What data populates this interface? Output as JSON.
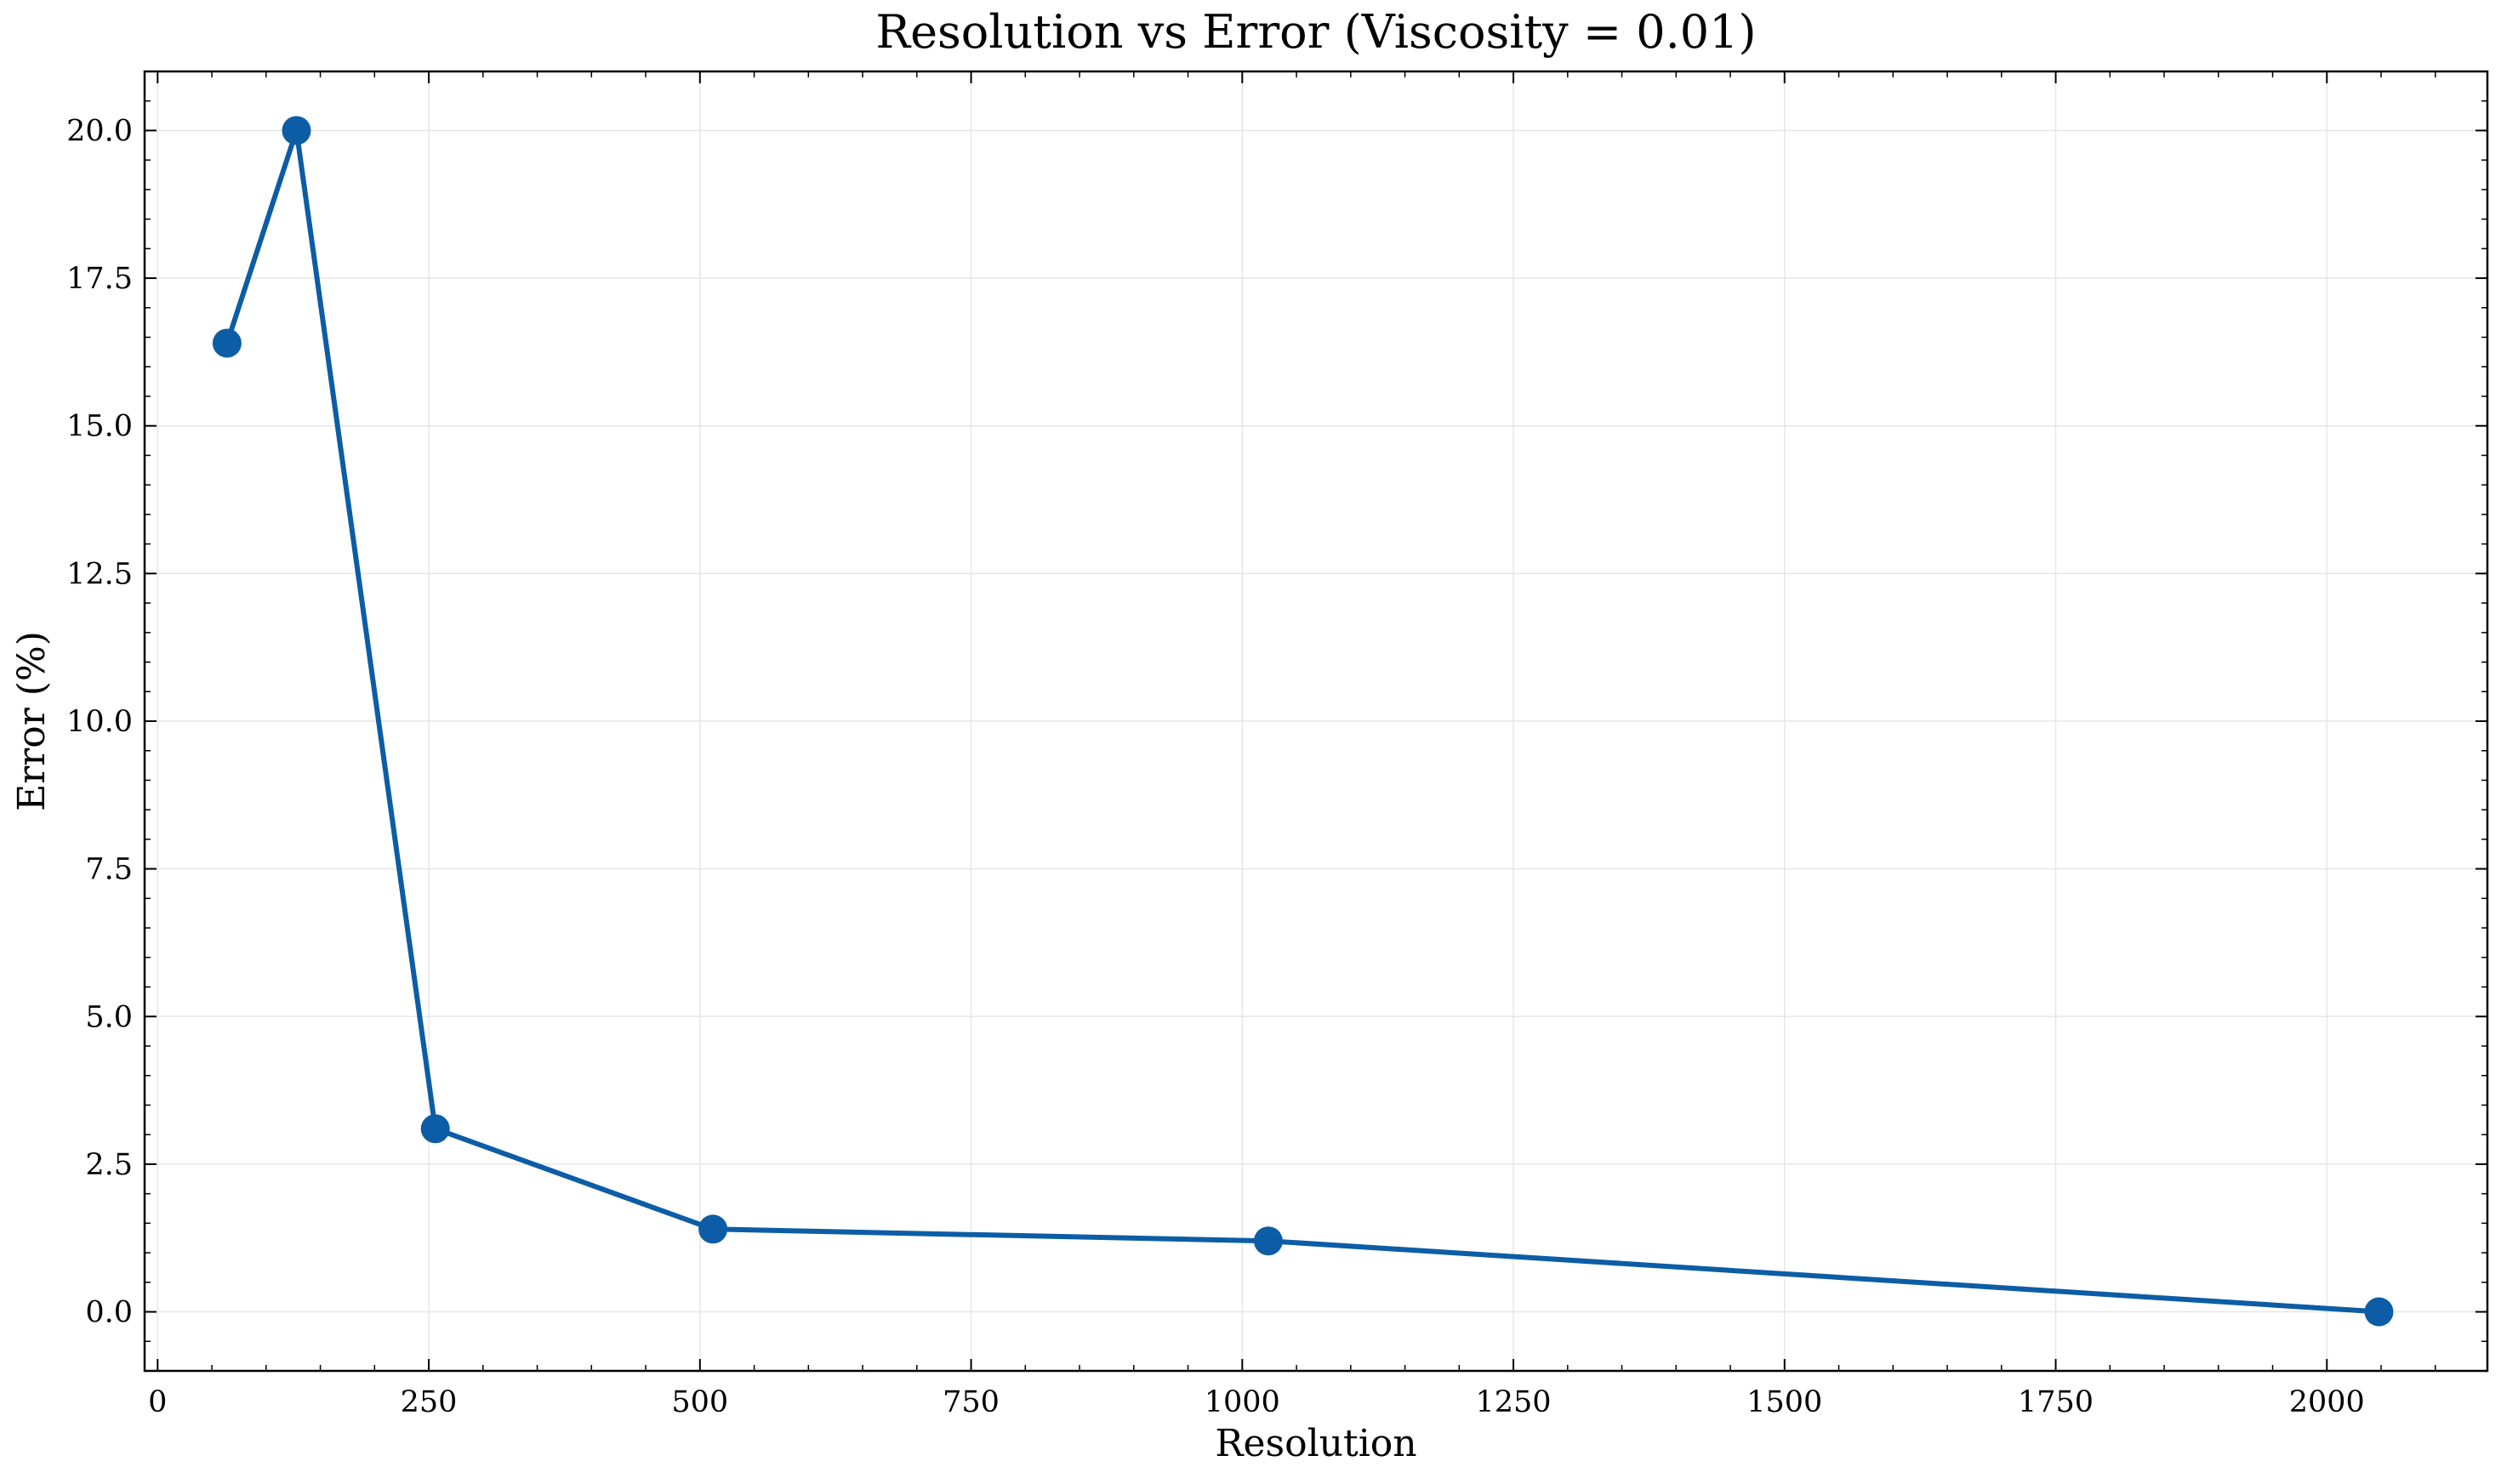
{
  "chart_data": {
    "type": "line",
    "title": "Resolution vs Error (Viscosity = 0.01)",
    "xlabel": "Resolution",
    "ylabel": "Error (%)",
    "xlim": [
      -12,
      2148
    ],
    "ylim": [
      -1.0,
      21.0
    ],
    "x_ticks": [
      0,
      250,
      500,
      750,
      1000,
      1250,
      1500,
      1750,
      2000
    ],
    "x_tick_labels": [
      "0",
      "250",
      "500",
      "750",
      "1000",
      "1250",
      "1500",
      "1750",
      "2000"
    ],
    "y_ticks": [
      0,
      2.5,
      5,
      7.5,
      10,
      12.5,
      15,
      17.5,
      20
    ],
    "y_tick_labels": [
      "0.0",
      "2.5",
      "5.0",
      "7.5",
      "10.0",
      "12.5",
      "15.0",
      "17.5",
      "20.0"
    ],
    "grid": true,
    "legend": "none",
    "series": [
      {
        "color": "#0c5da5",
        "marker": "circle",
        "x": [
          64,
          128,
          256,
          512,
          1024,
          2048
        ],
        "y": [
          16.4,
          20.0,
          3.1,
          1.4,
          1.2,
          0.0
        ]
      }
    ]
  }
}
